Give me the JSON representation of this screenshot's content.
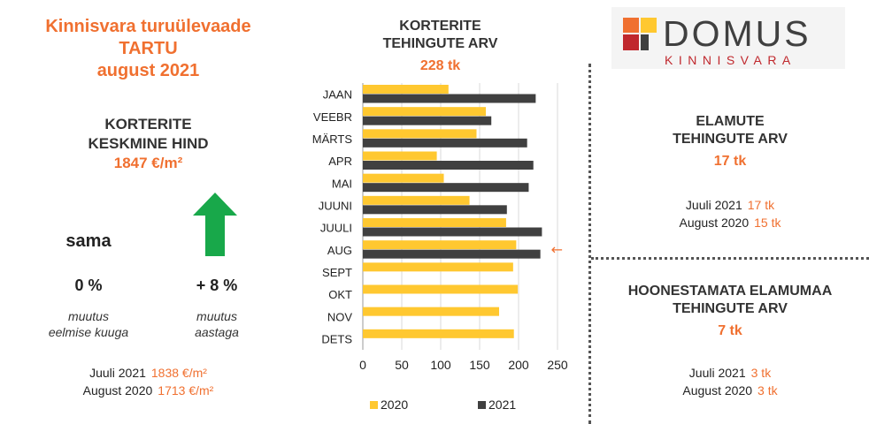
{
  "report": {
    "title_line1": "Kinnisvara turuülevaade",
    "title_line2": "TARTU",
    "title_line3": "august 2021"
  },
  "price": {
    "heading_line1": "KORTERITE",
    "heading_line2": "KESKMINE HIND",
    "value": "1847 €/m²",
    "mom_word": "sama",
    "mom_value": "0 %",
    "mom_caption_line1": "muutus",
    "mom_caption_line2": "eelmise kuuga",
    "yoy_value": "+ 8 %",
    "yoy_caption_line1": "muutus",
    "yoy_caption_line2": "aastaga",
    "comparison": [
      {
        "label": "Juuli 2021",
        "value": "1838 €/m²"
      },
      {
        "label": "August 2020",
        "value": "1713 €/m²"
      }
    ]
  },
  "chart_heading": {
    "line1": "KORTERITE",
    "line2": "TEHINGUTE ARV",
    "total": "228 tk"
  },
  "chart_data": {
    "type": "bar",
    "orientation": "horizontal",
    "categories": [
      "JAAN",
      "VEEBR",
      "MÄRTS",
      "APR",
      "MAI",
      "JUUNI",
      "JUULI",
      "AUG",
      "SEPT",
      "OKT",
      "NOV",
      "DETS"
    ],
    "series": [
      {
        "name": "2020",
        "color": "#ffc830",
        "values": [
          110,
          158,
          146,
          95,
          104,
          137,
          184,
          197,
          193,
          199,
          175,
          194
        ]
      },
      {
        "name": "2021",
        "color": "#404040",
        "values": [
          222,
          165,
          211,
          219,
          213,
          185,
          230,
          228,
          null,
          null,
          null,
          null
        ]
      }
    ],
    "xlim": [
      0,
      250
    ],
    "xticks": [
      "0",
      "50",
      "100",
      "150",
      "200",
      "250"
    ],
    "grid": true,
    "legend_position": "bottom",
    "highlight_category": "AUG",
    "highlight_color": "#f07030"
  },
  "houses": {
    "heading_line1": "ELAMUTE",
    "heading_line2": "TEHINGUTE ARV",
    "value": "17 tk",
    "comparison": [
      {
        "label": "Juuli 2021",
        "value": "17 tk"
      },
      {
        "label": "August 2020",
        "value": "15 tk"
      }
    ]
  },
  "land": {
    "heading_line1": "HOONESTAMATA ELAMUMAA",
    "heading_line2": "TEHINGUTE ARV",
    "value": "7 tk",
    "comparison": [
      {
        "label": "Juuli 2021",
        "value": "3 tk"
      },
      {
        "label": "August 2020",
        "value": "3 tk"
      }
    ]
  },
  "logo": {
    "name": "DOMUS",
    "subtitle": "KINNISVARA",
    "colors": [
      "#f07030",
      "#ffc830",
      "#c0282d",
      "#404040"
    ]
  },
  "up_arrow_color": "#18a84a"
}
